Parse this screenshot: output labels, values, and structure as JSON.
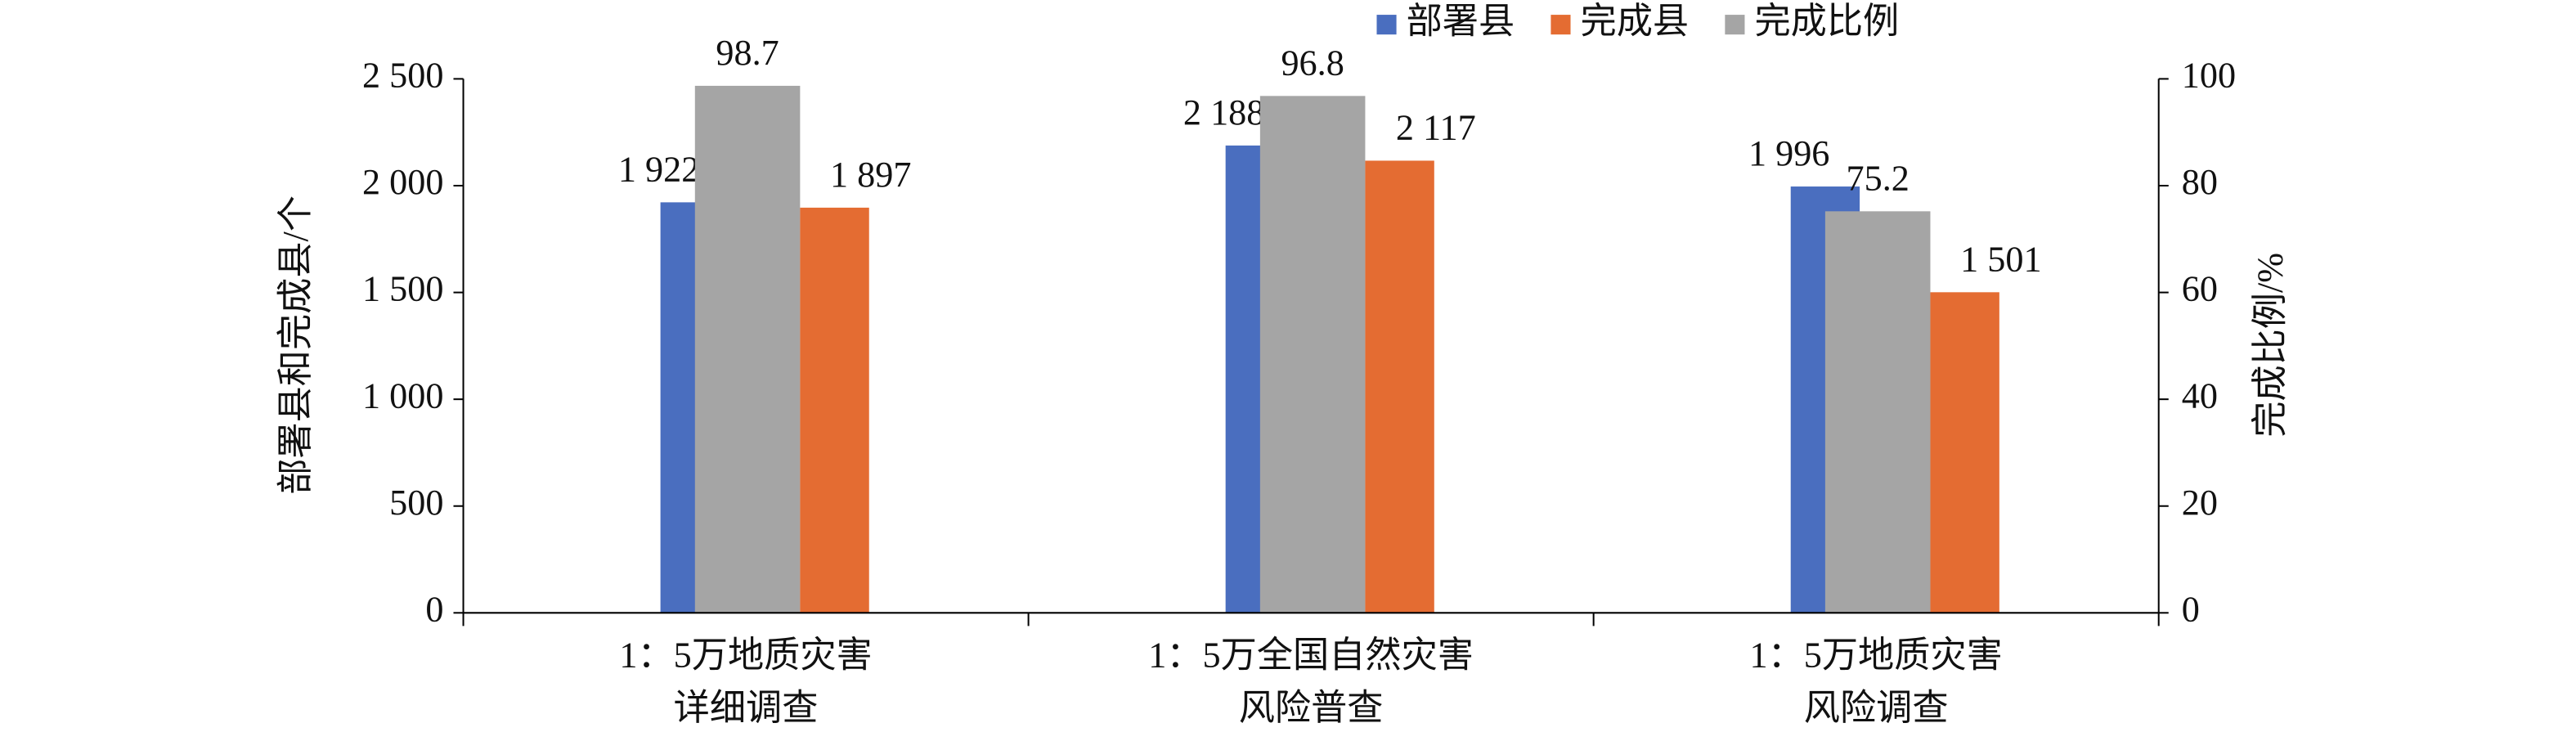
{
  "chart_data": {
    "type": "bar",
    "categories": [
      [
        "1：5万地质灾害",
        "详细调查"
      ],
      [
        "1：5万全国自然灾害",
        "风险普查"
      ],
      [
        "1：5万地质灾害",
        "风险调查"
      ]
    ],
    "series": [
      {
        "name": "部署县",
        "color": "#4a6ebf",
        "values": [
          1922,
          2188,
          1996
        ],
        "value_labels": [
          "1 922",
          "2 188",
          "1 996"
        ]
      },
      {
        "name": "完成县",
        "color": "#e46c32",
        "values": [
          1897,
          2117,
          1501
        ],
        "value_labels": [
          "1 897",
          "2 117",
          "1 501"
        ]
      },
      {
        "name": "完成比例",
        "color": "#a5a5a5",
        "axis": "y2",
        "values": [
          98.7,
          96.8,
          75.2
        ]
      }
    ],
    "y_label": "部署县和完成县/个",
    "y2_label": "完成比例/%",
    "ylim": [
      0,
      2500
    ],
    "yticks": [
      0,
      500,
      {
        "value": 1000,
        "label": "1 000"
      },
      {
        "value": 1500,
        "label": "1 500"
      },
      {
        "value": 2000,
        "label": "2 000"
      },
      {
        "value": 2500,
        "label": "2 500"
      }
    ],
    "y2lim": [
      0,
      100
    ],
    "y2ticks": [
      0,
      20,
      40,
      60,
      80,
      100
    ]
  }
}
